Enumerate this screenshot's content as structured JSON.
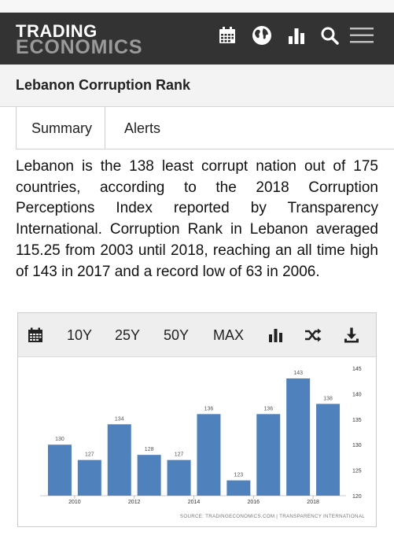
{
  "brand": {
    "line1": "TRADING",
    "line2": "ECONOMICS"
  },
  "header_icons": [
    "calendar-icon",
    "globe-icon",
    "bar-chart-icon",
    "search-icon",
    "menu-icon"
  ],
  "page": {
    "title": "Lebanon Corruption Rank"
  },
  "tabs": [
    {
      "label": "Summary"
    },
    {
      "label": "Alerts"
    }
  ],
  "description": "Lebanon is the 138 least corrupt nation out of 175 countries, according to the 2018 Corruption Perceptions Index reported by Transparency International. Corruption Rank in Lebanon averaged 115.25 from 2003 until 2018, reaching an all time high of 143 in 2017 and a record low of 63 in 2006.",
  "toolbar": {
    "ranges": [
      "10Y",
      "25Y",
      "50Y",
      "MAX"
    ],
    "icons": [
      "calendar-icon",
      "bar-chart-icon",
      "shuffle-icon",
      "download-icon"
    ]
  },
  "colors": {
    "header_bg": "#333333",
    "bar": "#4f81bd",
    "logo_gray": "#9a9a9a"
  },
  "chart_data": {
    "type": "bar",
    "categories": [
      "2009",
      "2010",
      "2011",
      "2012",
      "2013",
      "2014",
      "2015",
      "2016",
      "2017",
      "2018"
    ],
    "values": [
      130,
      127,
      134,
      128,
      127,
      136,
      123,
      136,
      143,
      138
    ],
    "x_tick_labels": [
      "2010",
      "2012",
      "2014",
      "2016",
      "2018"
    ],
    "y_ticks": [
      120,
      125,
      130,
      135,
      140,
      145
    ],
    "ylim": [
      120,
      145
    ],
    "y_axis_side": "right",
    "data_labels": true,
    "grid": false,
    "source": "SOURCE: TRADINGECONOMICS.COM | TRANSPARENCY INTERNATIONAL"
  }
}
